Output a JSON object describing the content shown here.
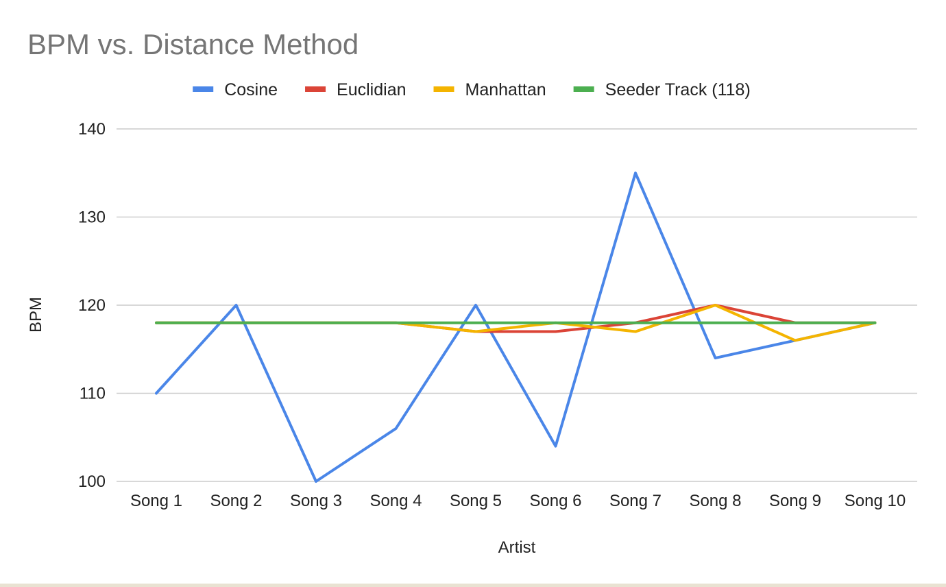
{
  "chart_data": {
    "type": "line",
    "title": "BPM vs. Distance Method",
    "xlabel": "Artist",
    "ylabel": "BPM",
    "categories": [
      "Song 1",
      "Song 2",
      "Song 3",
      "Song 4",
      "Song 5",
      "Song 6",
      "Song 7",
      "Song 8",
      "Song 9",
      "Song 10"
    ],
    "ylim": [
      100,
      140
    ],
    "yticks": [
      100,
      110,
      120,
      130,
      140
    ],
    "grid": true,
    "legend_position": "top",
    "series": [
      {
        "name": "Cosine",
        "color": "#4a86e8",
        "values": [
          110,
          120,
          100,
          106,
          120,
          104,
          135,
          114,
          116,
          118
        ]
      },
      {
        "name": "Euclidian",
        "color": "#db4437",
        "values": [
          118,
          118,
          118,
          118,
          117,
          117,
          118,
          120,
          118,
          118
        ]
      },
      {
        "name": "Manhattan",
        "color": "#f4b400",
        "values": [
          118,
          118,
          118,
          118,
          117,
          118,
          117,
          120,
          116,
          118
        ]
      },
      {
        "name": "Seeder Track (118)",
        "color": "#4caf50",
        "values": [
          118,
          118,
          118,
          118,
          118,
          118,
          118,
          118,
          118,
          118
        ]
      }
    ]
  }
}
